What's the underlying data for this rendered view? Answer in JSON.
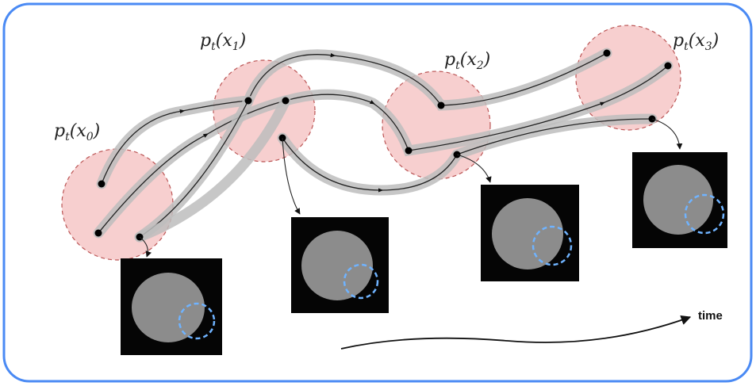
{
  "nodes": [
    {
      "label": [
        "p",
        "t",
        "(x",
        "0",
        ")"
      ]
    },
    {
      "label": [
        "p",
        "t",
        "(x",
        "1",
        ")"
      ]
    },
    {
      "label": [
        "p",
        "t",
        "(x",
        "2",
        ")"
      ]
    },
    {
      "label": [
        "p",
        "t",
        "(x",
        "3",
        ")"
      ]
    }
  ],
  "axis": {
    "label": "time"
  }
}
